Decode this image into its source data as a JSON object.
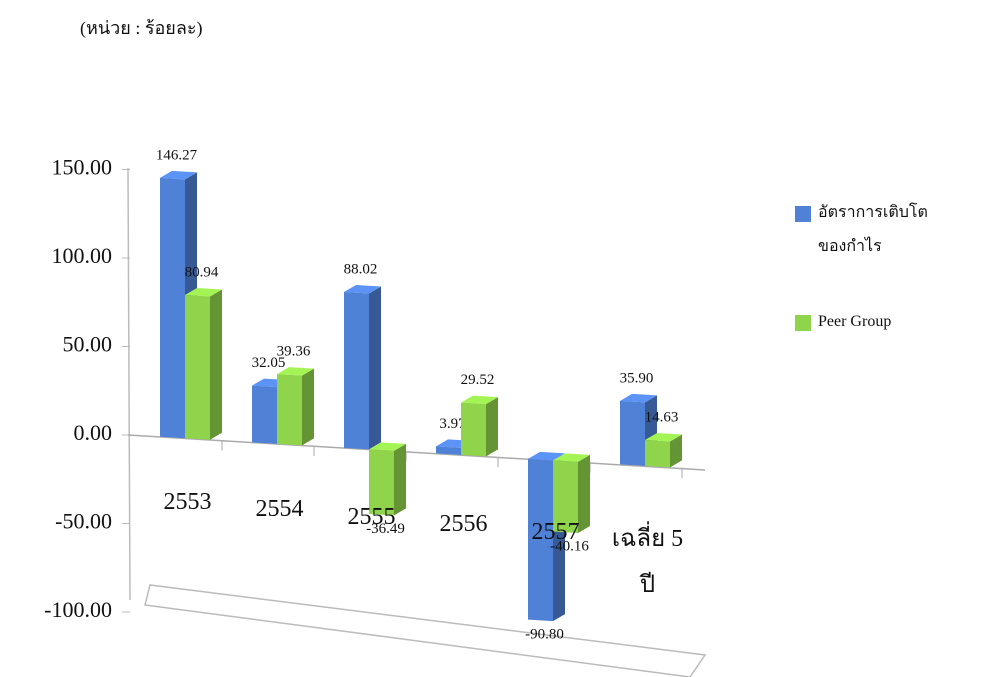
{
  "chart_data": {
    "type": "bar3d",
    "unit_label": "(หน่วย : ร้อยละ)",
    "categories": [
      "2553",
      "2554",
      "2555",
      "2556",
      "2557",
      "เฉลี่ย 5 ปี"
    ],
    "series": [
      {
        "name": "อัตราการเติบโตของกำไร",
        "color": "#4f81d6",
        "values": [
          146.27,
          32.05,
          88.02,
          3.97,
          -90.8,
          35.9
        ],
        "value_labels": [
          "146.27",
          "32.05",
          "88.02",
          "3.97",
          "-90.80",
          "35.90"
        ]
      },
      {
        "name": "Peer Group",
        "color": "#8fd44a",
        "values": [
          80.94,
          39.36,
          -36.49,
          29.52,
          -40.16,
          14.63
        ],
        "value_labels": [
          "80.94",
          "39.36",
          "-36.49",
          "29.52",
          "-40.16",
          "14.63"
        ]
      }
    ],
    "ylim": [
      -100,
      150
    ],
    "yticks": [
      {
        "value": -100,
        "label": "-100.00"
      },
      {
        "value": -50,
        "label": "-50.00"
      },
      {
        "value": 0,
        "label": "0.00"
      },
      {
        "value": 50,
        "label": "50.00"
      },
      {
        "value": 100,
        "label": "100.00"
      },
      {
        "value": 150,
        "label": "150.00"
      }
    ]
  }
}
